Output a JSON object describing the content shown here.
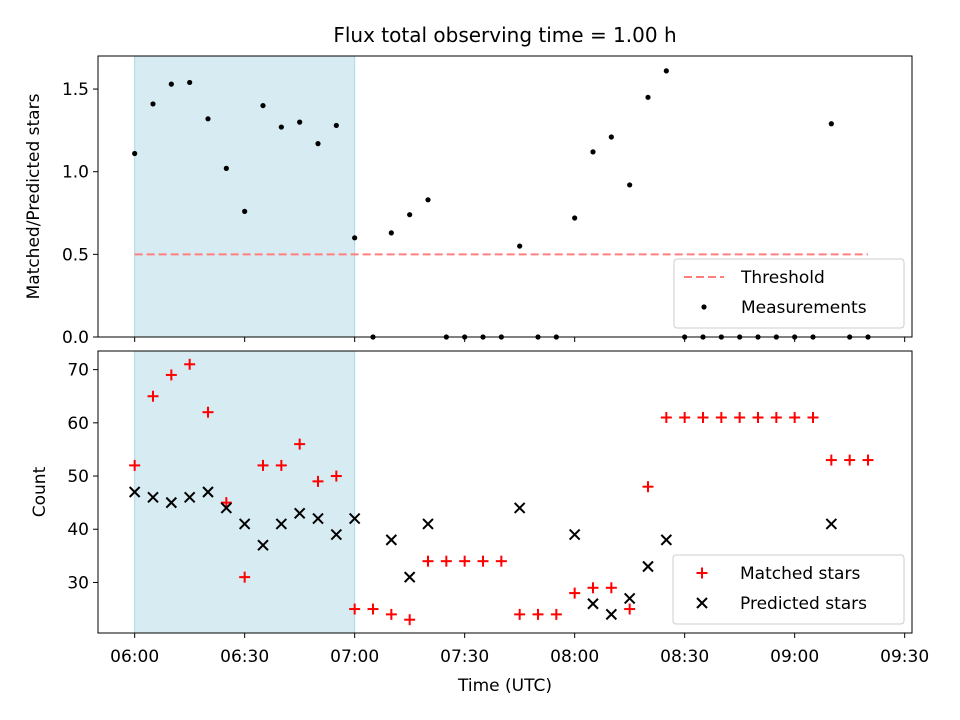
{
  "title": "Flux total observing time = 1.00 h",
  "colors": {
    "window": "#add8e6",
    "threshold": "#ff7f7f",
    "measurements": "#000000",
    "matched": "#ff0000",
    "predicted": "#000000"
  },
  "xaxis": {
    "label": "Time (UTC)",
    "range_minutes": [
      -10,
      212
    ],
    "ticks": [
      {
        "t": 0,
        "label": "06:00"
      },
      {
        "t": 30,
        "label": "06:30"
      },
      {
        "t": 60,
        "label": "07:00"
      },
      {
        "t": 90,
        "label": "07:30"
      },
      {
        "t": 120,
        "label": "08:00"
      },
      {
        "t": 150,
        "label": "08:30"
      },
      {
        "t": 180,
        "label": "09:00"
      },
      {
        "t": 210,
        "label": "09:30"
      }
    ]
  },
  "observing_window": {
    "start": "06:00",
    "end": "07:00",
    "start_min": 0,
    "end_min": 60
  },
  "chart_data": [
    {
      "type": "scatter",
      "ylabel": "Matched/Predicted stars",
      "ylim": [
        0,
        1.7
      ],
      "yticks": [
        {
          "v": 0,
          "label": "0.0"
        },
        {
          "v": 0.5,
          "label": "0.5"
        },
        {
          "v": 1.0,
          "label": "1.0"
        },
        {
          "v": 1.5,
          "label": "1.5"
        }
      ],
      "legend_position": "lower-right",
      "threshold": {
        "name": "Threshold",
        "value": 0.5,
        "x_start": 0,
        "x_end": 200
      },
      "series": [
        {
          "name": "Measurements",
          "x": [
            0,
            5,
            10,
            15,
            20,
            25,
            30,
            35,
            40,
            45,
            50,
            55,
            60,
            65,
            70,
            75,
            80,
            85,
            90,
            95,
            100,
            105,
            110,
            115,
            120,
            125,
            130,
            135,
            140,
            145,
            150,
            155,
            160,
            165,
            170,
            175,
            180,
            185,
            190,
            195,
            200
          ],
          "y": [
            1.11,
            1.41,
            1.53,
            1.54,
            1.32,
            1.02,
            0.76,
            1.4,
            1.27,
            1.3,
            1.17,
            1.28,
            0.6,
            0.0,
            0.63,
            0.74,
            0.83,
            0.0,
            0.0,
            0.0,
            0.0,
            0.55,
            0.0,
            0.0,
            0.72,
            1.12,
            1.21,
            0.92,
            1.45,
            1.61,
            0.0,
            0.0,
            0.0,
            0.0,
            0.0,
            0.0,
            0.0,
            0.0,
            1.29,
            0.0,
            0.0
          ]
        }
      ]
    },
    {
      "type": "scatter",
      "ylabel": "Count",
      "ylim": [
        20.5,
        73.5
      ],
      "yticks": [
        {
          "v": 30,
          "label": "30"
        },
        {
          "v": 40,
          "label": "40"
        },
        {
          "v": 50,
          "label": "50"
        },
        {
          "v": 60,
          "label": "60"
        },
        {
          "v": 70,
          "label": "70"
        }
      ],
      "legend_position": "lower-right",
      "series": [
        {
          "name": "Matched stars",
          "marker": "+",
          "x": [
            0,
            5,
            10,
            15,
            20,
            25,
            30,
            35,
            40,
            45,
            50,
            55,
            60,
            65,
            70,
            75,
            80,
            85,
            90,
            95,
            100,
            105,
            110,
            115,
            120,
            125,
            130,
            135,
            140,
            145,
            150,
            155,
            160,
            165,
            170,
            175,
            180,
            185,
            190,
            195,
            200
          ],
          "y": [
            52,
            65,
            69,
            71,
            62,
            45,
            31,
            52,
            52,
            56,
            49,
            50,
            25,
            25,
            24,
            23,
            34,
            34,
            34,
            34,
            34,
            24,
            24,
            24,
            28,
            29,
            29,
            25,
            48,
            61,
            61,
            61,
            61,
            61,
            61,
            61,
            61,
            61,
            53,
            53,
            53
          ]
        },
        {
          "name": "Predicted stars",
          "marker": "x",
          "x": [
            0,
            5,
            10,
            15,
            20,
            25,
            30,
            35,
            40,
            45,
            50,
            55,
            60,
            70,
            75,
            80,
            105,
            120,
            125,
            130,
            135,
            140,
            145,
            190
          ],
          "y": [
            47,
            46,
            45,
            46,
            47,
            44,
            41,
            37,
            41,
            43,
            42,
            39,
            42,
            38,
            31,
            41,
            44,
            39,
            26,
            24,
            27,
            33,
            38,
            41
          ]
        }
      ]
    }
  ]
}
